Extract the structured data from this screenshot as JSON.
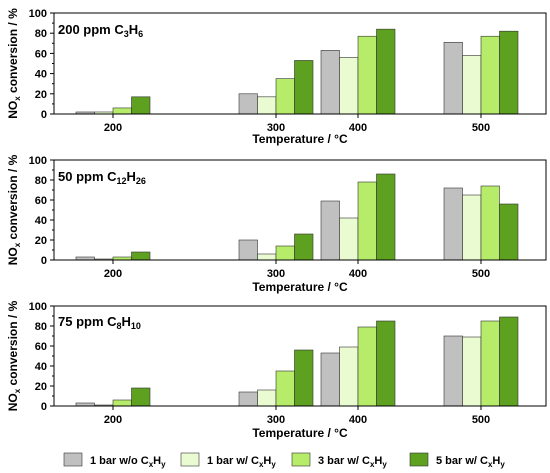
{
  "figure": {
    "legend_entries": [
      {
        "main": "1 bar w/o C",
        "sub1": "x",
        "mid": "H",
        "sub2": "y",
        "color": "#c0c0c0"
      },
      {
        "main": "1 bar w/ C",
        "sub1": "x",
        "mid": "H",
        "sub2": "y",
        "color": "#eafbd2"
      },
      {
        "main": "3 bar w/ C",
        "sub1": "x",
        "mid": "H",
        "sub2": "y",
        "color": "#b6ec6a"
      },
      {
        "main": "5 bar w/ C",
        "sub1": "x",
        "mid": "H",
        "sub2": "y",
        "color": "#5ea020"
      }
    ]
  },
  "chart_data": [
    {
      "type": "bar",
      "title_parts": [
        "200 ppm C",
        "3",
        "H",
        "6"
      ],
      "xlabel": "Temperature / °C",
      "ylabel_parts": [
        "NO",
        "x",
        " conversion / %"
      ],
      "categories": [
        "200",
        "300",
        "400",
        "500"
      ],
      "ylim": [
        0,
        100
      ],
      "yticks": [
        0,
        20,
        40,
        60,
        80,
        100
      ],
      "series": [
        {
          "name": "1 bar w/o CxHy",
          "values": [
            2,
            20,
            63,
            71
          ]
        },
        {
          "name": "1 bar w/ CxHy",
          "values": [
            2,
            17,
            56,
            58
          ]
        },
        {
          "name": "3 bar w/ CxHy",
          "values": [
            6,
            35,
            77,
            77
          ]
        },
        {
          "name": "5 bar w/ CxHy",
          "values": [
            17,
            53,
            84,
            82
          ]
        }
      ]
    },
    {
      "type": "bar",
      "title_parts": [
        "50 ppm C",
        "12",
        "H",
        "26"
      ],
      "xlabel": "Temperature / °C",
      "ylabel_parts": [
        "NO",
        "x",
        " conversion / %"
      ],
      "categories": [
        "200",
        "300",
        "400",
        "500"
      ],
      "ylim": [
        0,
        100
      ],
      "yticks": [
        0,
        20,
        40,
        60,
        80,
        100
      ],
      "series": [
        {
          "name": "1 bar w/o CxHy",
          "values": [
            3,
            20,
            59,
            72
          ]
        },
        {
          "name": "1 bar w/ CxHy",
          "values": [
            1,
            6,
            42,
            65
          ]
        },
        {
          "name": "3 bar w/ CxHy",
          "values": [
            3,
            14,
            78,
            74
          ]
        },
        {
          "name": "5 bar w/ CxHy",
          "values": [
            8,
            26,
            86,
            56
          ]
        }
      ]
    },
    {
      "type": "bar",
      "title_parts": [
        "75 ppm C",
        "8",
        "H",
        "10"
      ],
      "xlabel": "Temperature / °C",
      "ylabel_parts": [
        "NO",
        "x",
        " conversion / %"
      ],
      "categories": [
        "200",
        "300",
        "400",
        "500"
      ],
      "ylim": [
        0,
        100
      ],
      "yticks": [
        0,
        20,
        40,
        60,
        80,
        100
      ],
      "series": [
        {
          "name": "1 bar w/o CxHy",
          "values": [
            3,
            14,
            53,
            70
          ]
        },
        {
          "name": "1 bar w/ CxHy",
          "values": [
            1,
            16,
            59,
            69
          ]
        },
        {
          "name": "3 bar w/ CxHy",
          "values": [
            6,
            35,
            79,
            85
          ]
        },
        {
          "name": "5 bar w/ CxHy",
          "values": [
            18,
            56,
            85,
            89
          ]
        }
      ]
    }
  ]
}
